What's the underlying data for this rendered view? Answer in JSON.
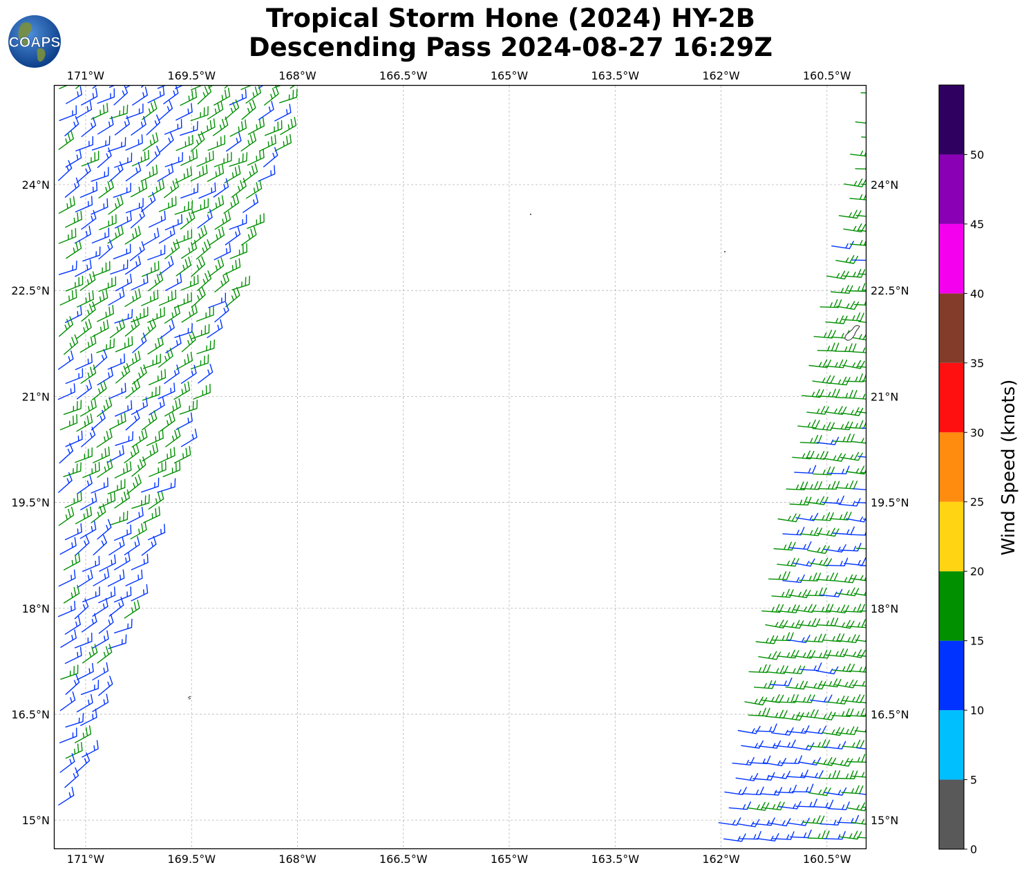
{
  "title": {
    "line1": "Tropical Storm Hone (2024) HY-2B",
    "line2": "Descending Pass 2024-08-27 16:29Z"
  },
  "logo": {
    "text": "COAPS",
    "icon": "globe-icon"
  },
  "map": {
    "lon_labels": [
      "171°W",
      "169.5°W",
      "168°W",
      "166.5°W",
      "165°W",
      "163.5°W",
      "162°W",
      "160.5°W"
    ],
    "lat_labels": [
      "24°N",
      "22.5°N",
      "21°N",
      "19.5°N",
      "18°N",
      "16.5°N",
      "15°N"
    ],
    "lon_values": [
      -171,
      -169.5,
      -168,
      -166.5,
      -165,
      -163.5,
      -162,
      -160.5
    ],
    "lat_values": [
      24,
      22.5,
      21,
      19.5,
      18,
      16.5,
      15
    ],
    "extent": {
      "lon_min": -171.44,
      "lon_max": -159.95,
      "lat_min": 14.6,
      "lat_max": 25.4
    },
    "gridlines": "dashed",
    "barb_colors": {
      "blue": "#0033ff",
      "green": "#008f00"
    },
    "wind_swaths": [
      {
        "side": "west",
        "dominant_wind": "northeasterly",
        "speeds_knots": "10-20"
      },
      {
        "side": "east",
        "dominant_wind": "northeasterly to easterly",
        "speeds_knots": "10-20"
      }
    ]
  },
  "colorbar": {
    "label": "Wind Speed (knots)",
    "ticks": [
      "0",
      "5",
      "10",
      "15",
      "20",
      "25",
      "30",
      "35",
      "40",
      "45",
      "50"
    ],
    "tick_values": [
      0,
      5,
      10,
      15,
      20,
      25,
      30,
      35,
      40,
      45,
      50
    ],
    "vmax": 55,
    "colors": [
      "#595959",
      "#00bfff",
      "#0033ff",
      "#009000",
      "#ffd513",
      "#ff8c0f",
      "#ff1010",
      "#843c2a",
      "#f500ef",
      "#8a00b5",
      "#300060"
    ]
  }
}
